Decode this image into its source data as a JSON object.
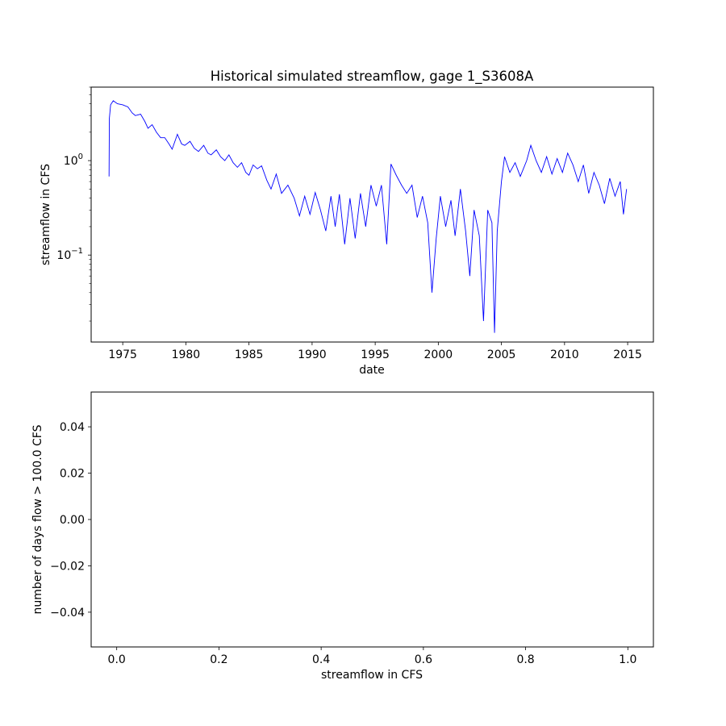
{
  "chart_data": [
    {
      "type": "line",
      "title": "Historical simulated streamflow, gage 1_S3608A",
      "xlabel": "date",
      "ylabel": "streamflow in CFS",
      "yscale": "log",
      "xlim": [
        "1972-07-01",
        "2017-01-15"
      ],
      "ylim": [
        0.012,
        6.0
      ],
      "grid": false,
      "x_tick_labels": [
        "1975",
        "1980",
        "1985",
        "1990",
        "1995",
        "2000",
        "2005",
        "2010",
        "2015"
      ],
      "y_tick_labels": [
        {
          "value": 1.0,
          "base": "10",
          "exp": "0"
        },
        {
          "value": 0.1,
          "base": "10",
          "exp": "−1"
        }
      ],
      "series": [
        {
          "color": "#0000ff",
          "points": [
            [
              "1973-12-01",
              0.68
            ],
            [
              "1973-12-10",
              2.8
            ],
            [
              "1974-01-15",
              3.9
            ],
            [
              "1974-04-01",
              4.3
            ],
            [
              "1974-08-01",
              4.0
            ],
            [
              "1975-01-01",
              3.9
            ],
            [
              "1975-06-01",
              3.7
            ],
            [
              "1975-10-01",
              3.2
            ],
            [
              "1976-01-01",
              3.0
            ],
            [
              "1976-06-01",
              3.1
            ],
            [
              "1976-10-01",
              2.6
            ],
            [
              "1977-01-01",
              2.2
            ],
            [
              "1977-05-01",
              2.4
            ],
            [
              "1977-09-01",
              2.0
            ],
            [
              "1978-01-01",
              1.75
            ],
            [
              "1978-05-01",
              1.75
            ],
            [
              "1978-09-01",
              1.5
            ],
            [
              "1978-12-01",
              1.32
            ],
            [
              "1979-05-01",
              1.9
            ],
            [
              "1979-09-01",
              1.5
            ],
            [
              "1979-12-01",
              1.45
            ],
            [
              "1980-05-01",
              1.6
            ],
            [
              "1980-09-01",
              1.35
            ],
            [
              "1981-01-01",
              1.25
            ],
            [
              "1981-06-01",
              1.45
            ],
            [
              "1981-10-01",
              1.2
            ],
            [
              "1982-01-01",
              1.15
            ],
            [
              "1982-06-01",
              1.3
            ],
            [
              "1982-10-01",
              1.1
            ],
            [
              "1983-02-01",
              1.0
            ],
            [
              "1983-06-01",
              1.15
            ],
            [
              "1983-10-01",
              0.95
            ],
            [
              "1984-02-01",
              0.85
            ],
            [
              "1984-06-01",
              0.95
            ],
            [
              "1984-10-01",
              0.75
            ],
            [
              "1985-01-01",
              0.7
            ],
            [
              "1985-05-01",
              0.9
            ],
            [
              "1985-09-01",
              0.82
            ],
            [
              "1986-01-01",
              0.88
            ],
            [
              "1986-06-01",
              0.62
            ],
            [
              "1986-10-01",
              0.5
            ],
            [
              "1987-03-01",
              0.72
            ],
            [
              "1987-08-01",
              0.45
            ],
            [
              "1988-02-01",
              0.55
            ],
            [
              "1988-08-01",
              0.4
            ],
            [
              "1989-01-01",
              0.26
            ],
            [
              "1989-06-01",
              0.42
            ],
            [
              "1989-11-01",
              0.27
            ],
            [
              "1990-04-01",
              0.46
            ],
            [
              "1990-09-01",
              0.3
            ],
            [
              "1991-02-01",
              0.18
            ],
            [
              "1991-07-01",
              0.42
            ],
            [
              "1991-11-01",
              0.2
            ],
            [
              "1992-03-01",
              0.44
            ],
            [
              "1992-08-01",
              0.13
            ],
            [
              "1993-01-01",
              0.4
            ],
            [
              "1993-06-01",
              0.15
            ],
            [
              "1993-11-01",
              0.45
            ],
            [
              "1994-04-01",
              0.2
            ],
            [
              "1994-09-01",
              0.55
            ],
            [
              "1995-02-01",
              0.33
            ],
            [
              "1995-07-01",
              0.55
            ],
            [
              "1995-12-01",
              0.13
            ],
            [
              "1996-04-01",
              0.92
            ],
            [
              "1996-09-01",
              0.7
            ],
            [
              "1997-02-01",
              0.55
            ],
            [
              "1997-07-01",
              0.45
            ],
            [
              "1997-12-01",
              0.55
            ],
            [
              "1998-05-01",
              0.25
            ],
            [
              "1998-10-01",
              0.42
            ],
            [
              "1999-03-01",
              0.22
            ],
            [
              "1999-07-01",
              0.04
            ],
            [
              "1999-11-01",
              0.15
            ],
            [
              "2000-03-01",
              0.42
            ],
            [
              "2000-08-01",
              0.2
            ],
            [
              "2001-01-01",
              0.38
            ],
            [
              "2001-05-01",
              0.16
            ],
            [
              "2001-10-01",
              0.5
            ],
            [
              "2002-03-01",
              0.18
            ],
            [
              "2002-07-01",
              0.06
            ],
            [
              "2002-11-01",
              0.3
            ],
            [
              "2003-04-01",
              0.16
            ],
            [
              "2003-08-01",
              0.02
            ],
            [
              "2003-12-01",
              0.3
            ],
            [
              "2004-04-01",
              0.22
            ],
            [
              "2004-06-15",
              0.015
            ],
            [
              "2004-09-01",
              0.18
            ],
            [
              "2005-01-01",
              0.6
            ],
            [
              "2005-04-01",
              1.1
            ],
            [
              "2005-09-01",
              0.75
            ],
            [
              "2006-02-01",
              0.95
            ],
            [
              "2006-07-01",
              0.68
            ],
            [
              "2007-01-01",
              1.0
            ],
            [
              "2007-05-01",
              1.45
            ],
            [
              "2007-10-01",
              1.0
            ],
            [
              "2008-03-01",
              0.75
            ],
            [
              "2008-08-01",
              1.1
            ],
            [
              "2009-01-01",
              0.72
            ],
            [
              "2009-06-01",
              1.05
            ],
            [
              "2009-11-01",
              0.75
            ],
            [
              "2010-04-01",
              1.2
            ],
            [
              "2010-09-01",
              0.9
            ],
            [
              "2011-02-01",
              0.6
            ],
            [
              "2011-07-01",
              0.9
            ],
            [
              "2011-12-01",
              0.45
            ],
            [
              "2012-05-01",
              0.75
            ],
            [
              "2012-10-01",
              0.55
            ],
            [
              "2013-03-01",
              0.35
            ],
            [
              "2013-08-01",
              0.65
            ],
            [
              "2014-01-01",
              0.42
            ],
            [
              "2014-06-01",
              0.6
            ],
            [
              "2014-09-01",
              0.27
            ],
            [
              "2014-12-01",
              0.5
            ]
          ]
        }
      ]
    },
    {
      "type": "line",
      "title": "",
      "xlabel": "streamflow in CFS",
      "ylabel": "number of days flow > 100.0 CFS",
      "xlim": [
        -0.05,
        1.05
      ],
      "ylim": [
        -0.055,
        0.055
      ],
      "grid": false,
      "x_tick_labels": [
        "0.0",
        "0.2",
        "0.4",
        "0.6",
        "0.8",
        "1.0"
      ],
      "x_ticks": [
        0.0,
        0.2,
        0.4,
        0.6,
        0.8,
        1.0
      ],
      "y_tick_labels": [
        "0.04",
        "0.02",
        "0.00",
        "−0.02",
        "−0.04"
      ],
      "y_ticks": [
        0.04,
        0.02,
        0.0,
        -0.02,
        -0.04
      ],
      "series": []
    }
  ]
}
